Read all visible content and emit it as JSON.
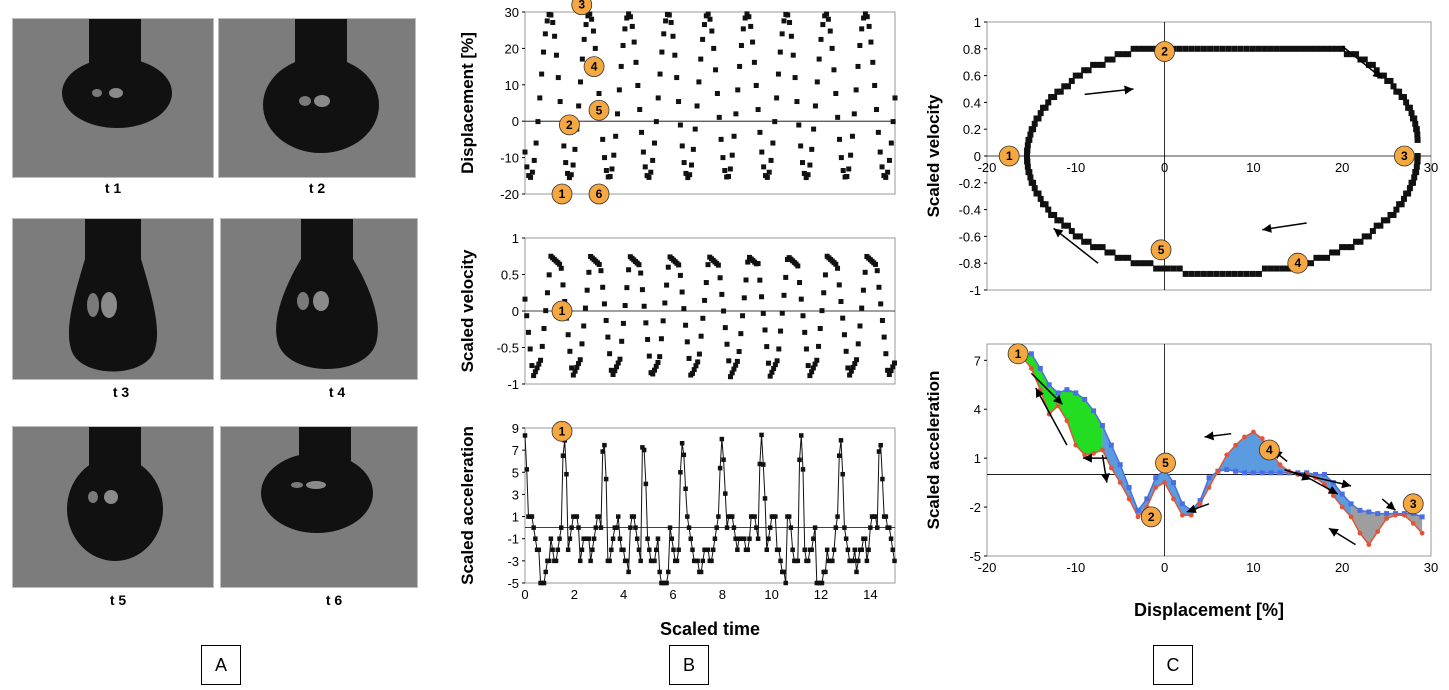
{
  "panel_labels": {
    "a": "A",
    "b": "B",
    "c": "C"
  },
  "photos": {
    "captions": [
      "t 1",
      "t 2",
      "t 3",
      "t 4",
      "t 5",
      "t 6"
    ],
    "background_color": "#7c7c7c",
    "drop_color": "#111111"
  },
  "chart_data": [
    {
      "id": "b1",
      "type": "scatter",
      "title": "",
      "xlabel": "",
      "ylabel": "Displacement [%]",
      "xlim": [
        0,
        15
      ],
      "ylim": [
        -20,
        30
      ],
      "yticks": [
        "-20",
        "-10",
        "0",
        "10",
        "20",
        "30"
      ],
      "series": [
        {
          "name": "displacement",
          "amplitude": 22.5,
          "offset": 7,
          "period_scaled_time": 1.6,
          "phase": 0.5
        }
      ],
      "annotations": [
        {
          "label": "1",
          "x": 1.5,
          "y": -20
        },
        {
          "label": "2",
          "x": 1.8,
          "y": -1
        },
        {
          "label": "3",
          "x": 2.3,
          "y": 32
        },
        {
          "label": "4",
          "x": 2.8,
          "y": 15
        },
        {
          "label": "5",
          "x": 3.0,
          "y": 3
        },
        {
          "label": "6",
          "x": 3.0,
          "y": -20
        }
      ],
      "marker_color": "#111111",
      "annotation_color": "#f5a742"
    },
    {
      "id": "b2",
      "type": "scatter",
      "xlabel": "",
      "ylabel": "Scaled velocity",
      "xlim": [
        0,
        15
      ],
      "ylim": [
        -1,
        1
      ],
      "yticks": [
        "-1",
        "-0.5",
        "0",
        "0.5",
        "1"
      ],
      "series": [
        {
          "name": "scaled velocity"
        }
      ],
      "annotations": [
        {
          "label": "1",
          "x": 1.5,
          "y": 0
        }
      ]
    },
    {
      "id": "b3",
      "type": "line",
      "xlabel": "Scaled time",
      "ylabel": "Scaled acceleration",
      "xlim": [
        0,
        15
      ],
      "ylim": [
        -5,
        9
      ],
      "xticks": [
        "0",
        "2",
        "4",
        "6",
        "8",
        "10",
        "12",
        "14"
      ],
      "yticks": [
        "-5",
        "-3",
        "-1",
        "1",
        "3",
        "5",
        "7",
        "9"
      ],
      "series": [
        {
          "name": "scaled acceleration"
        }
      ],
      "annotations": [
        {
          "label": "1",
          "x": 1.5,
          "y": 8.7
        }
      ]
    },
    {
      "id": "c1",
      "type": "scatter",
      "xlabel": "",
      "ylabel": "Scaled velocity",
      "xlim": [
        -20,
        30
      ],
      "ylim": [
        -1,
        1
      ],
      "xticks": [
        "-20",
        "-10",
        "0",
        "10",
        "20",
        "30"
      ],
      "yticks": [
        "-1",
        "-0.8",
        "-0.6",
        "-0.4",
        "-0.2",
        "0",
        "0.2",
        "0.4",
        "0.6",
        "0.8",
        "1"
      ],
      "series": [
        {
          "name": "phase portrait velocity vs displacement"
        }
      ],
      "annotations": [
        {
          "label": "1",
          "x": -17.5,
          "y": 0
        },
        {
          "label": "2",
          "x": 0,
          "y": 0.78
        },
        {
          "label": "3",
          "x": 27,
          "y": 0
        },
        {
          "label": "4",
          "x": 15,
          "y": -0.8
        },
        {
          "label": "5",
          "x": -0.4,
          "y": -0.7
        }
      ]
    },
    {
      "id": "c2",
      "type": "area",
      "xlabel": "Displacement [%]",
      "ylabel": "Scaled acceleration",
      "xlim": [
        -20,
        30
      ],
      "ylim": [
        -5,
        8
      ],
      "xticks": [
        "-20",
        "-10",
        "0",
        "10",
        "20",
        "30"
      ],
      "yticks": [
        "-5",
        "-2",
        "1",
        "4",
        "7"
      ],
      "series": [
        {
          "name": "upper (blue)",
          "color": "#4a6fe0",
          "x": [
            -16,
            -15,
            -14,
            -13,
            -12,
            -11,
            -10,
            -9,
            -8,
            -7,
            -6,
            -5,
            -4,
            -3,
            -2,
            -1,
            0,
            1,
            2,
            3,
            4,
            5,
            6,
            7,
            8,
            9,
            10,
            11,
            12,
            13,
            14,
            15,
            16,
            17,
            18,
            19,
            20,
            21,
            22,
            23,
            24,
            25,
            26,
            27,
            28,
            29
          ],
          "y": [
            7.4,
            7.4,
            6.5,
            5.5,
            5.0,
            5.2,
            5.0,
            4.6,
            3.9,
            3.0,
            1.8,
            0.6,
            -0.8,
            -2.2,
            -1.5,
            -0.2,
            0.3,
            -0.5,
            -1.8,
            -2.2,
            -1.6,
            -0.2,
            0.2,
            0.3,
            0.2,
            0.1,
            0.1,
            0.1,
            0.1,
            0.1,
            0.1,
            0.1,
            0.1,
            0.0,
            0.0,
            -0.5,
            -1.2,
            -1.8,
            -2.2,
            -2.3,
            -2.4,
            -2.4,
            -2.4,
            -2.4,
            -2.4,
            -2.6
          ]
        },
        {
          "name": "lower (red)",
          "color": "#e0553a",
          "x": [
            -16,
            -15,
            -14,
            -13,
            -12,
            -11,
            -10,
            -9,
            -8,
            -7,
            -6,
            -5,
            -4,
            -3,
            -2,
            -1,
            0,
            1,
            2,
            3,
            4,
            5,
            6,
            7,
            8,
            9,
            10,
            11,
            12,
            13,
            14,
            15,
            16,
            17,
            18,
            19,
            20,
            21,
            22,
            23,
            24,
            25,
            26,
            27,
            28,
            29
          ],
          "y": [
            7.2,
            6.5,
            5.2,
            3.7,
            4.2,
            3.3,
            1.8,
            1.2,
            1.3,
            1.5,
            0.4,
            -0.5,
            -1.5,
            -2.6,
            -2.0,
            -0.8,
            -0.5,
            -1.5,
            -2.5,
            -2.5,
            -1.8,
            -0.8,
            0.2,
            1.2,
            1.8,
            2.3,
            2.6,
            2.2,
            1.3,
            0.6,
            0.2,
            0.0,
            0.0,
            -0.2,
            -0.6,
            -1.3,
            -2.0,
            -2.6,
            -3.6,
            -4.3,
            -3.5,
            -2.7,
            -2.5,
            -2.5,
            -3.0,
            -3.6
          ]
        }
      ],
      "fill_colors": {
        "green": "#22dd22",
        "blue": "#5b9be0",
        "gray": "#9e9e9e"
      },
      "annotations": [
        {
          "label": "1",
          "x": -16.5,
          "y": 7.4
        },
        {
          "label": "2",
          "x": -1.5,
          "y": -2.6
        },
        {
          "label": "3",
          "x": 28,
          "y": -1.8
        },
        {
          "label": "4",
          "x": 11.8,
          "y": 1.5
        },
        {
          "label": "5",
          "x": 0.1,
          "y": 0.7
        }
      ]
    }
  ]
}
